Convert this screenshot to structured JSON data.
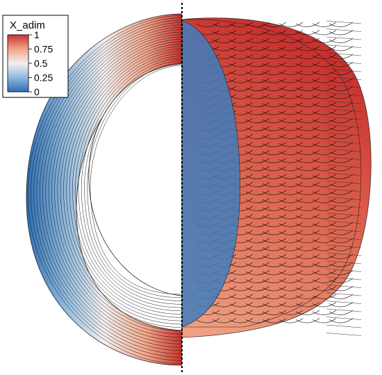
{
  "legend": {
    "title": "X_adim",
    "ticks": [
      "1",
      "0.75",
      "0.5",
      "0.25",
      "0"
    ],
    "tick_values": [
      1,
      0.75,
      0.5,
      0.25,
      0
    ]
  },
  "colormap": {
    "stops": [
      {
        "v": 0.0,
        "color": "#2f6fb5"
      },
      {
        "v": 0.25,
        "color": "#8fb8dc"
      },
      {
        "v": 0.5,
        "color": "#f4f1ef"
      },
      {
        "v": 0.75,
        "color": "#f1a487"
      },
      {
        "v": 1.0,
        "color": "#c9322f"
      }
    ],
    "range": [
      0,
      1
    ]
  }
}
